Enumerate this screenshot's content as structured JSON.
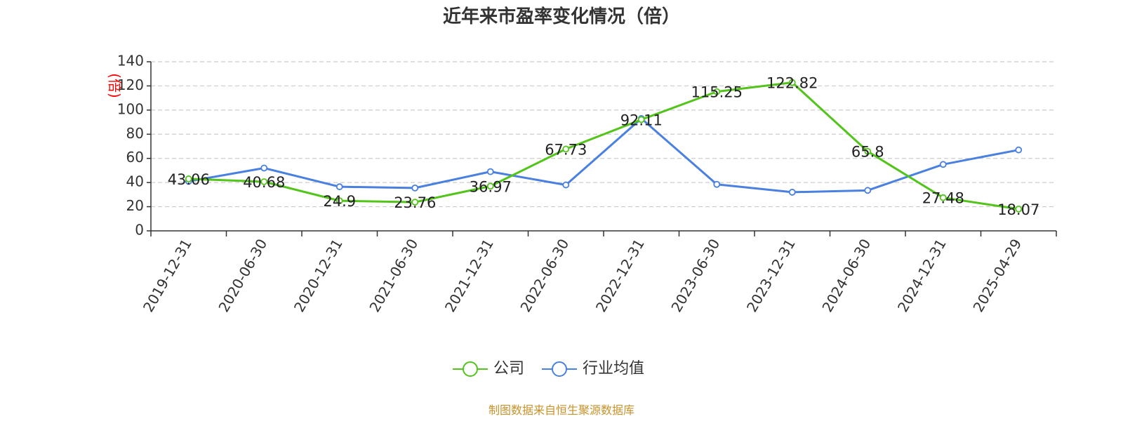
{
  "chart_data": {
    "type": "line",
    "title": "近年来市盈率变化情况（倍）",
    "ylabel": "(倍)",
    "xlabel": "",
    "categories": [
      "2019-12-31",
      "2020-06-30",
      "2020-12-31",
      "2021-06-30",
      "2021-12-31",
      "2022-06-30",
      "2022-12-31",
      "2023-06-30",
      "2023-12-31",
      "2024-06-30",
      "2024-12-31",
      "2025-04-29"
    ],
    "ylim": [
      0,
      140
    ],
    "yticks": [
      "0",
      "20",
      "40",
      "60",
      "80",
      "100",
      "120",
      "140"
    ],
    "grid": true,
    "legend_position": "bottom",
    "series": [
      {
        "name": "公司",
        "color": "#52c41a",
        "values": [
          43.06,
          40.68,
          24.9,
          23.76,
          36.97,
          67.73,
          92.11,
          115.25,
          122.82,
          65.8,
          27.48,
          18.07
        ],
        "labels": [
          "43.06",
          "40.68",
          "24.9",
          "23.76",
          "36.97",
          "67.73",
          "92.11",
          "115.25",
          "122.82",
          "65.8",
          "27.48",
          "18.07"
        ]
      },
      {
        "name": "行业均值",
        "color": "#4a80e0",
        "values": [
          41,
          52,
          36.5,
          35.5,
          49,
          38,
          93,
          38.5,
          32,
          33.5,
          55,
          67
        ]
      }
    ]
  },
  "source": "制图数据来自恒生聚源数据库"
}
